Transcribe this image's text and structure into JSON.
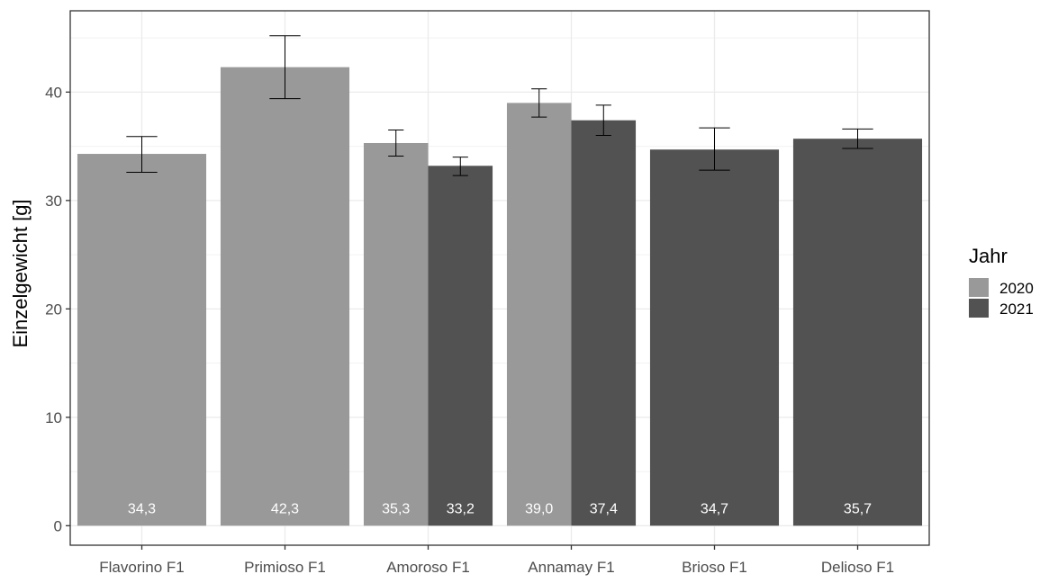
{
  "chart_data": {
    "type": "bar",
    "ylabel": "Einzelgewicht [g]",
    "ylim": [
      -1.8,
      47.5
    ],
    "yticks": [
      0,
      10,
      20,
      30,
      40
    ],
    "grid": true,
    "legend": {
      "title": "Jahr",
      "position": "right"
    },
    "categories": [
      "Flavorino F1",
      "Primioso F1",
      "Amoroso F1",
      "Annamay F1",
      "Brioso F1",
      "Delioso F1"
    ],
    "series": [
      {
        "name": "2020",
        "color": "#999999",
        "values": [
          34.3,
          42.3,
          35.3,
          39.0,
          null,
          null
        ],
        "error_low": [
          32.6,
          39.4,
          34.1,
          37.7,
          null,
          null
        ],
        "error_high": [
          35.9,
          45.2,
          36.5,
          40.3,
          null,
          null
        ],
        "labels": [
          "34,3",
          "42,3",
          "35,3",
          "39,0",
          null,
          null
        ]
      },
      {
        "name": "2021",
        "color": "#525252",
        "values": [
          null,
          null,
          33.2,
          37.4,
          34.7,
          35.7
        ],
        "error_low": [
          null,
          null,
          32.3,
          36.0,
          32.8,
          34.8
        ],
        "error_high": [
          null,
          null,
          34.0,
          38.8,
          36.7,
          36.6
        ],
        "labels": [
          null,
          null,
          "33,2",
          "37,4",
          "34,7",
          "35,7"
        ]
      }
    ]
  }
}
